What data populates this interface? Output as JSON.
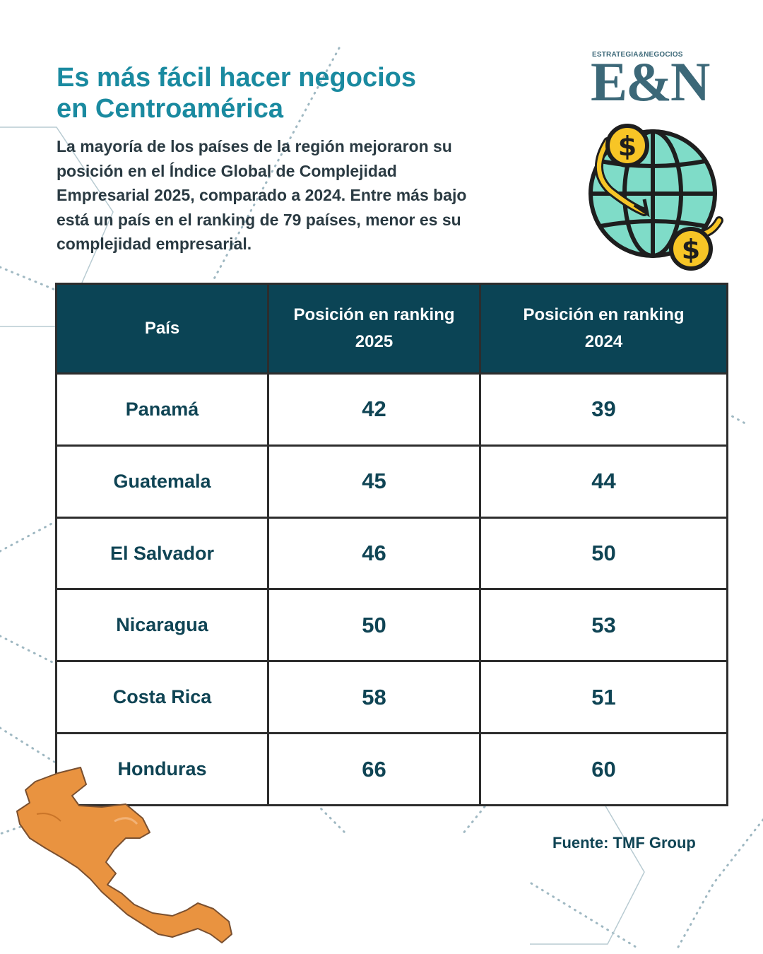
{
  "header": {
    "title_line1": "Es más fácil hacer negocios",
    "title_line2": "en Centroamérica",
    "subtitle_lines": [
      "La mayoría de los países de la región mejoraron su",
      "posición en el Índice Global de Complejidad",
      "Empresarial 2025, comparado a 2024. Entre más bajo",
      "está un país en el ranking de 79 países, menor es su",
      "complejidad empresarial."
    ]
  },
  "logo": {
    "top_text": "ESTRATEGIA&NEGOCIOS",
    "main_text": "E&N",
    "color": "#3c6878"
  },
  "icons": {
    "globe": "globe-money-icon",
    "dollar": "dollar-coin-icon",
    "map": "central-america-map-icon"
  },
  "table": {
    "headers": {
      "country": "País",
      "rank2025_line1": "Posición en ranking",
      "rank2025_line2": "2025",
      "rank2024_line1": "Posición en ranking",
      "rank2024_line2": "2024"
    },
    "rows": [
      {
        "country": "Panamá",
        "rank2025": "42",
        "rank2024": "39"
      },
      {
        "country": "Guatemala",
        "rank2025": "45",
        "rank2024": "44"
      },
      {
        "country": "El Salvador",
        "rank2025": "46",
        "rank2024": "50"
      },
      {
        "country": "Nicaragua",
        "rank2025": "50",
        "rank2024": "53"
      },
      {
        "country": "Costa Rica",
        "rank2025": "58",
        "rank2024": "51"
      },
      {
        "country": "Honduras",
        "rank2025": "66",
        "rank2024": "60"
      }
    ]
  },
  "source": "Fuente: TMF Group",
  "colors": {
    "title": "#1a8aa0",
    "header_bg": "#0b4455",
    "text_dark": "#0f4454",
    "map_fill": "#e99340",
    "globe_fill": "#7fdcc8",
    "coin_fill": "#f7c526"
  }
}
